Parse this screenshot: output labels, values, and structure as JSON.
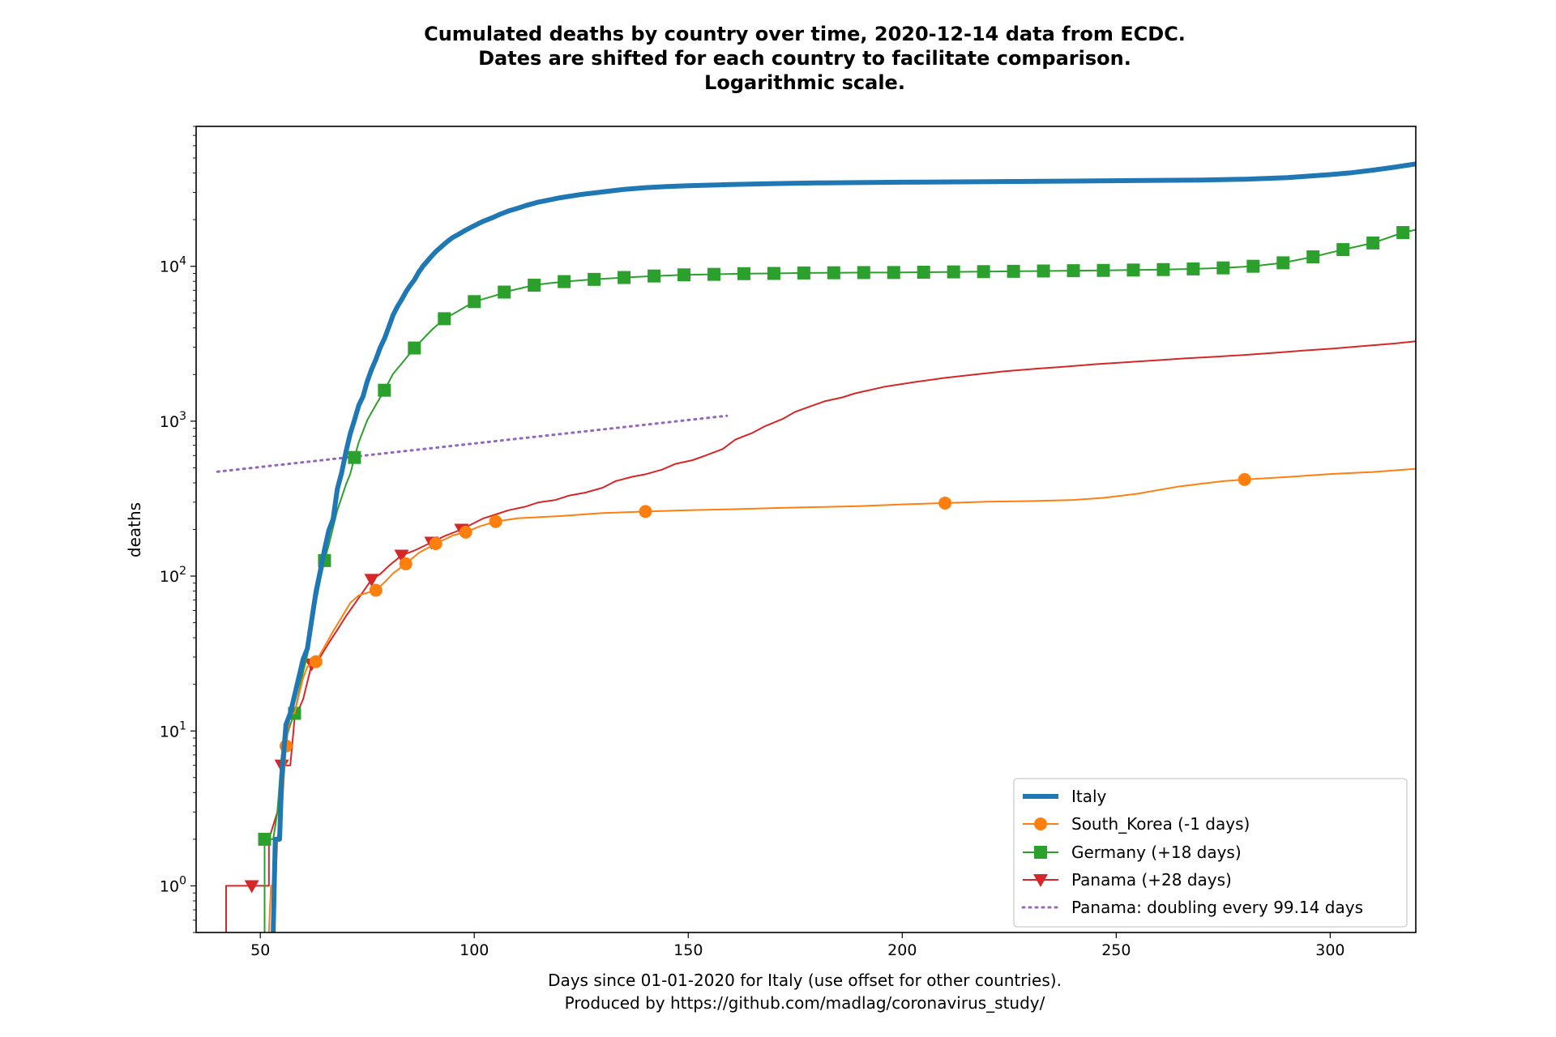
{
  "chart_data": {
    "type": "line",
    "title": [
      "Cumulated deaths by country over time, 2020-12-14 data from ECDC.",
      "Dates are shifted for each country to facilitate comparison.",
      "Logarithmic scale."
    ],
    "xlabel": [
      "Days since 01-01-2020 for Italy (use offset for other countries).",
      "Produced by https://github.com/madlag/coronavirus_study/"
    ],
    "ylabel": "deaths",
    "yscale": "log",
    "xlim": [
      35,
      320
    ],
    "ylim": [
      0.5,
      80000
    ],
    "x_ticks": [
      50,
      100,
      150,
      200,
      250,
      300
    ],
    "y_ticks": [
      {
        "value": 1,
        "base": "10",
        "exp": "0"
      },
      {
        "value": 10,
        "base": "10",
        "exp": "1"
      },
      {
        "value": 100,
        "base": "10",
        "exp": "2"
      },
      {
        "value": 1000,
        "base": "10",
        "exp": "3"
      },
      {
        "value": 10000,
        "base": "10",
        "exp": "4"
      }
    ],
    "grid": false,
    "legend_position": "lower-right",
    "series": [
      {
        "name": "Italy",
        "color": "#1f77b4",
        "marker": "none",
        "points": [
          [
            53,
            0.5
          ],
          [
            53.5,
            2
          ],
          [
            54.5,
            2
          ],
          [
            55,
            5
          ],
          [
            56,
            11
          ],
          [
            57,
            13
          ],
          [
            58,
            17
          ],
          [
            60,
            29
          ],
          [
            61,
            34
          ],
          [
            62,
            52
          ],
          [
            63,
            79
          ],
          [
            64,
            107
          ],
          [
            65,
            148
          ],
          [
            66,
            197
          ],
          [
            67,
            233
          ],
          [
            68,
            366
          ],
          [
            69,
            463
          ],
          [
            70,
            631
          ],
          [
            71,
            827
          ],
          [
            72,
            1016
          ],
          [
            73,
            1266
          ],
          [
            74,
            1441
          ],
          [
            75,
            1809
          ],
          [
            76,
            2158
          ],
          [
            77,
            2503
          ],
          [
            78,
            2978
          ],
          [
            79,
            3405
          ],
          [
            80,
            4032
          ],
          [
            81,
            4825
          ],
          [
            82,
            5476
          ],
          [
            83,
            6077
          ],
          [
            84,
            6820
          ],
          [
            85,
            7503
          ],
          [
            86,
            8165
          ],
          [
            87,
            9134
          ],
          [
            88,
            10023
          ],
          [
            89,
            10779
          ],
          [
            90,
            11591
          ],
          [
            91,
            12428
          ],
          [
            92,
            13155
          ],
          [
            93,
            13915
          ],
          [
            94,
            14681
          ],
          [
            95,
            15362
          ],
          [
            96,
            15887
          ],
          [
            98,
            17127
          ],
          [
            100,
            18279
          ],
          [
            102,
            19468
          ],
          [
            104,
            20465
          ],
          [
            106,
            21645
          ],
          [
            108,
            22745
          ],
          [
            110,
            23660
          ],
          [
            112,
            24648
          ],
          [
            115,
            25969
          ],
          [
            118,
            26977
          ],
          [
            120,
            27682
          ],
          [
            125,
            29079
          ],
          [
            130,
            30201
          ],
          [
            135,
            31368
          ],
          [
            140,
            32169
          ],
          [
            145,
            32735
          ],
          [
            150,
            33142
          ],
          [
            160,
            33689
          ],
          [
            170,
            34167
          ],
          [
            180,
            34514
          ],
          [
            200,
            34899
          ],
          [
            220,
            35181
          ],
          [
            240,
            35473
          ],
          [
            260,
            35875
          ],
          [
            270,
            36061
          ],
          [
            280,
            36474
          ],
          [
            290,
            37338
          ],
          [
            300,
            39059
          ],
          [
            305,
            40192
          ],
          [
            310,
            41750
          ],
          [
            315,
            43589
          ],
          [
            320,
            45733
          ]
        ]
      },
      {
        "name": "South_Korea (-1 days)",
        "color": "#ff7f0e",
        "marker": "circle",
        "points": [
          [
            52,
            0.5
          ],
          [
            52.5,
            1
          ],
          [
            53.5,
            1
          ],
          [
            54,
            2
          ],
          [
            55,
            3
          ],
          [
            56,
            8
          ],
          [
            57,
            13
          ],
          [
            58,
            13
          ],
          [
            59,
            17
          ],
          [
            60,
            22
          ],
          [
            61,
            26
          ],
          [
            63,
            28
          ],
          [
            65,
            35
          ],
          [
            67,
            44
          ],
          [
            69,
            54
          ],
          [
            71,
            67
          ],
          [
            73,
            75
          ],
          [
            75,
            78
          ],
          [
            77,
            81
          ],
          [
            79,
            91
          ],
          [
            81,
            104
          ],
          [
            84,
            120
          ],
          [
            87,
            141
          ],
          [
            91,
            162
          ],
          [
            95,
            183
          ],
          [
            98,
            192
          ],
          [
            101,
            208
          ],
          [
            105,
            225
          ],
          [
            110,
            236
          ],
          [
            115,
            240
          ],
          [
            120,
            244
          ],
          [
            130,
            255
          ],
          [
            140,
            261
          ],
          [
            150,
            266
          ],
          [
            160,
            270
          ],
          [
            170,
            275
          ],
          [
            180,
            279
          ],
          [
            190,
            283
          ],
          [
            200,
            290
          ],
          [
            210,
            296
          ],
          [
            220,
            302
          ],
          [
            230,
            305
          ],
          [
            240,
            310
          ],
          [
            247,
            320
          ],
          [
            255,
            340
          ],
          [
            260,
            360
          ],
          [
            265,
            380
          ],
          [
            270,
            395
          ],
          [
            275,
            410
          ],
          [
            280,
            420
          ],
          [
            290,
            436
          ],
          [
            300,
            456
          ],
          [
            310,
            470
          ],
          [
            320,
            493
          ]
        ]
      },
      {
        "name": "Germany (+18 days)",
        "color": "#2ca02c",
        "marker": "square",
        "points": [
          [
            51,
            0.5
          ],
          [
            51,
            2
          ],
          [
            53,
            2
          ],
          [
            54,
            3
          ],
          [
            55,
            7
          ],
          [
            57,
            11
          ],
          [
            58,
            13
          ],
          [
            60,
            24
          ],
          [
            61,
            31
          ],
          [
            63,
            68
          ],
          [
            64,
            94
          ],
          [
            65,
            126
          ],
          [
            66,
            159
          ],
          [
            67,
            206
          ],
          [
            68,
            267
          ],
          [
            70,
            389
          ],
          [
            71,
            455
          ],
          [
            72,
            583
          ],
          [
            73,
            732
          ],
          [
            75,
            1017
          ],
          [
            77,
            1275
          ],
          [
            79,
            1584
          ],
          [
            81,
            2016
          ],
          [
            83,
            2349
          ],
          [
            86,
            2967
          ],
          [
            90,
            3868
          ],
          [
            93,
            4586
          ],
          [
            96,
            5094
          ],
          [
            100,
            5913
          ],
          [
            105,
            6481
          ],
          [
            107,
            6812
          ],
          [
            110,
            7119
          ],
          [
            114,
            7549
          ],
          [
            117,
            7740
          ],
          [
            121,
            7962
          ],
          [
            128,
            8230
          ],
          [
            135,
            8461
          ],
          [
            142,
            8655
          ],
          [
            149,
            8800
          ],
          [
            156,
            8868
          ],
          [
            163,
            8962
          ],
          [
            170,
            8990
          ],
          [
            177,
            9054
          ],
          [
            184,
            9081
          ],
          [
            191,
            9106
          ],
          [
            198,
            9115
          ],
          [
            205,
            9156
          ],
          [
            212,
            9197
          ],
          [
            219,
            9232
          ],
          [
            226,
            9280
          ],
          [
            233,
            9322
          ],
          [
            240,
            9365
          ],
          [
            247,
            9404
          ],
          [
            254,
            9457
          ],
          [
            261,
            9522
          ],
          [
            268,
            9614
          ],
          [
            275,
            9761
          ],
          [
            282,
            10003
          ],
          [
            289,
            10526
          ],
          [
            296,
            11506
          ],
          [
            303,
            12814
          ],
          [
            310,
            14141
          ],
          [
            317,
            16510
          ],
          [
            320,
            17200
          ]
        ]
      },
      {
        "name": "Panama (+28 days)",
        "color": "#d62728",
        "marker": "triangle-down",
        "points": [
          [
            42,
            0.5
          ],
          [
            42,
            1
          ],
          [
            48,
            1
          ],
          [
            52,
            1
          ],
          [
            52,
            2
          ],
          [
            54,
            3
          ],
          [
            55,
            6
          ],
          [
            57,
            6
          ],
          [
            58,
            12
          ],
          [
            60,
            16
          ],
          [
            62,
            27
          ],
          [
            64,
            30
          ],
          [
            66,
            37
          ],
          [
            68,
            45
          ],
          [
            70,
            55
          ],
          [
            72,
            66
          ],
          [
            74,
            79
          ],
          [
            76,
            95
          ],
          [
            78,
            103
          ],
          [
            80,
            116
          ],
          [
            83,
            136
          ],
          [
            86,
            146
          ],
          [
            90,
            165
          ],
          [
            93,
            181
          ],
          [
            97,
            200
          ],
          [
            102,
            235
          ],
          [
            105,
            250
          ],
          [
            108,
            266
          ],
          [
            112,
            281
          ],
          [
            115,
            299
          ],
          [
            119,
            310
          ],
          [
            122,
            330
          ],
          [
            126,
            346
          ],
          [
            130,
            372
          ],
          [
            133,
            410
          ],
          [
            137,
            438
          ],
          [
            140,
            454
          ],
          [
            144,
            488
          ],
          [
            147,
            530
          ],
          [
            151,
            560
          ],
          [
            154,
            600
          ],
          [
            158,
            660
          ],
          [
            161,
            760
          ],
          [
            165,
            840
          ],
          [
            168,
            930
          ],
          [
            172,
            1033
          ],
          [
            175,
            1150
          ],
          [
            179,
            1260
          ],
          [
            182,
            1347
          ],
          [
            186,
            1424
          ],
          [
            189,
            1512
          ],
          [
            196,
            1671
          ],
          [
            203,
            1791
          ],
          [
            210,
            1904
          ],
          [
            217,
            1999
          ],
          [
            224,
            2100
          ],
          [
            231,
            2175
          ],
          [
            238,
            2248
          ],
          [
            245,
            2331
          ],
          [
            252,
            2400
          ],
          [
            259,
            2466
          ],
          [
            266,
            2542
          ],
          [
            273,
            2604
          ],
          [
            280,
            2677
          ],
          [
            287,
            2763
          ],
          [
            294,
            2859
          ],
          [
            301,
            2949
          ],
          [
            308,
            3058
          ],
          [
            315,
            3171
          ],
          [
            320,
            3280
          ]
        ]
      },
      {
        "name": "Panama: doubling every 99.14 days",
        "color": "#9467bd",
        "marker": "none",
        "style": "dotted",
        "points": [
          [
            40,
            472
          ],
          [
            159,
            1084
          ]
        ]
      }
    ]
  }
}
